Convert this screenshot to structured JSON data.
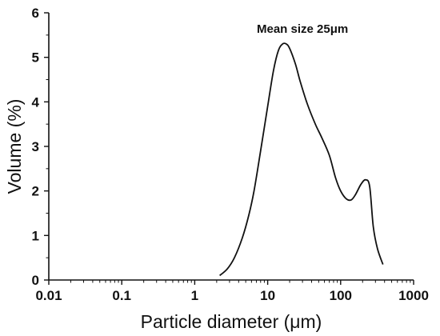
{
  "chart_data": {
    "type": "line",
    "xlabel": "Particle diameter (μm)",
    "ylabel": "Volume (%)",
    "xscale": "log",
    "xlim": [
      0.01,
      1000
    ],
    "ylim": [
      0,
      6
    ],
    "x_ticks": [
      "0.01",
      "0.1",
      "1",
      "10",
      "100",
      "1000"
    ],
    "x_tick_values": [
      0.01,
      0.1,
      1,
      10,
      100,
      1000
    ],
    "y_ticks": [
      "0",
      "1",
      "2",
      "3",
      "4",
      "5",
      "6"
    ],
    "y_tick_values": [
      0,
      1,
      2,
      3,
      4,
      5,
      6
    ],
    "grid": false,
    "annotation": {
      "text": "Mean size 25μm",
      "x": 30,
      "y": 5.55
    },
    "series": [
      {
        "x": [
          2.2,
          2.8,
          3.5,
          4.5,
          5.5,
          6.5,
          8,
          10,
          12,
          14,
          16,
          18,
          20,
          24,
          28,
          35,
          45,
          55,
          70,
          85,
          100,
          120,
          140,
          160,
          190,
          220,
          250,
          280,
          320,
          380
        ],
        "values": [
          0.1,
          0.25,
          0.5,
          0.95,
          1.45,
          2.0,
          2.9,
          3.9,
          4.7,
          5.15,
          5.3,
          5.3,
          5.2,
          4.85,
          4.45,
          3.95,
          3.5,
          3.2,
          2.8,
          2.3,
          2.0,
          1.82,
          1.8,
          1.92,
          2.15,
          2.25,
          2.1,
          1.2,
          0.7,
          0.35
        ]
      }
    ]
  }
}
